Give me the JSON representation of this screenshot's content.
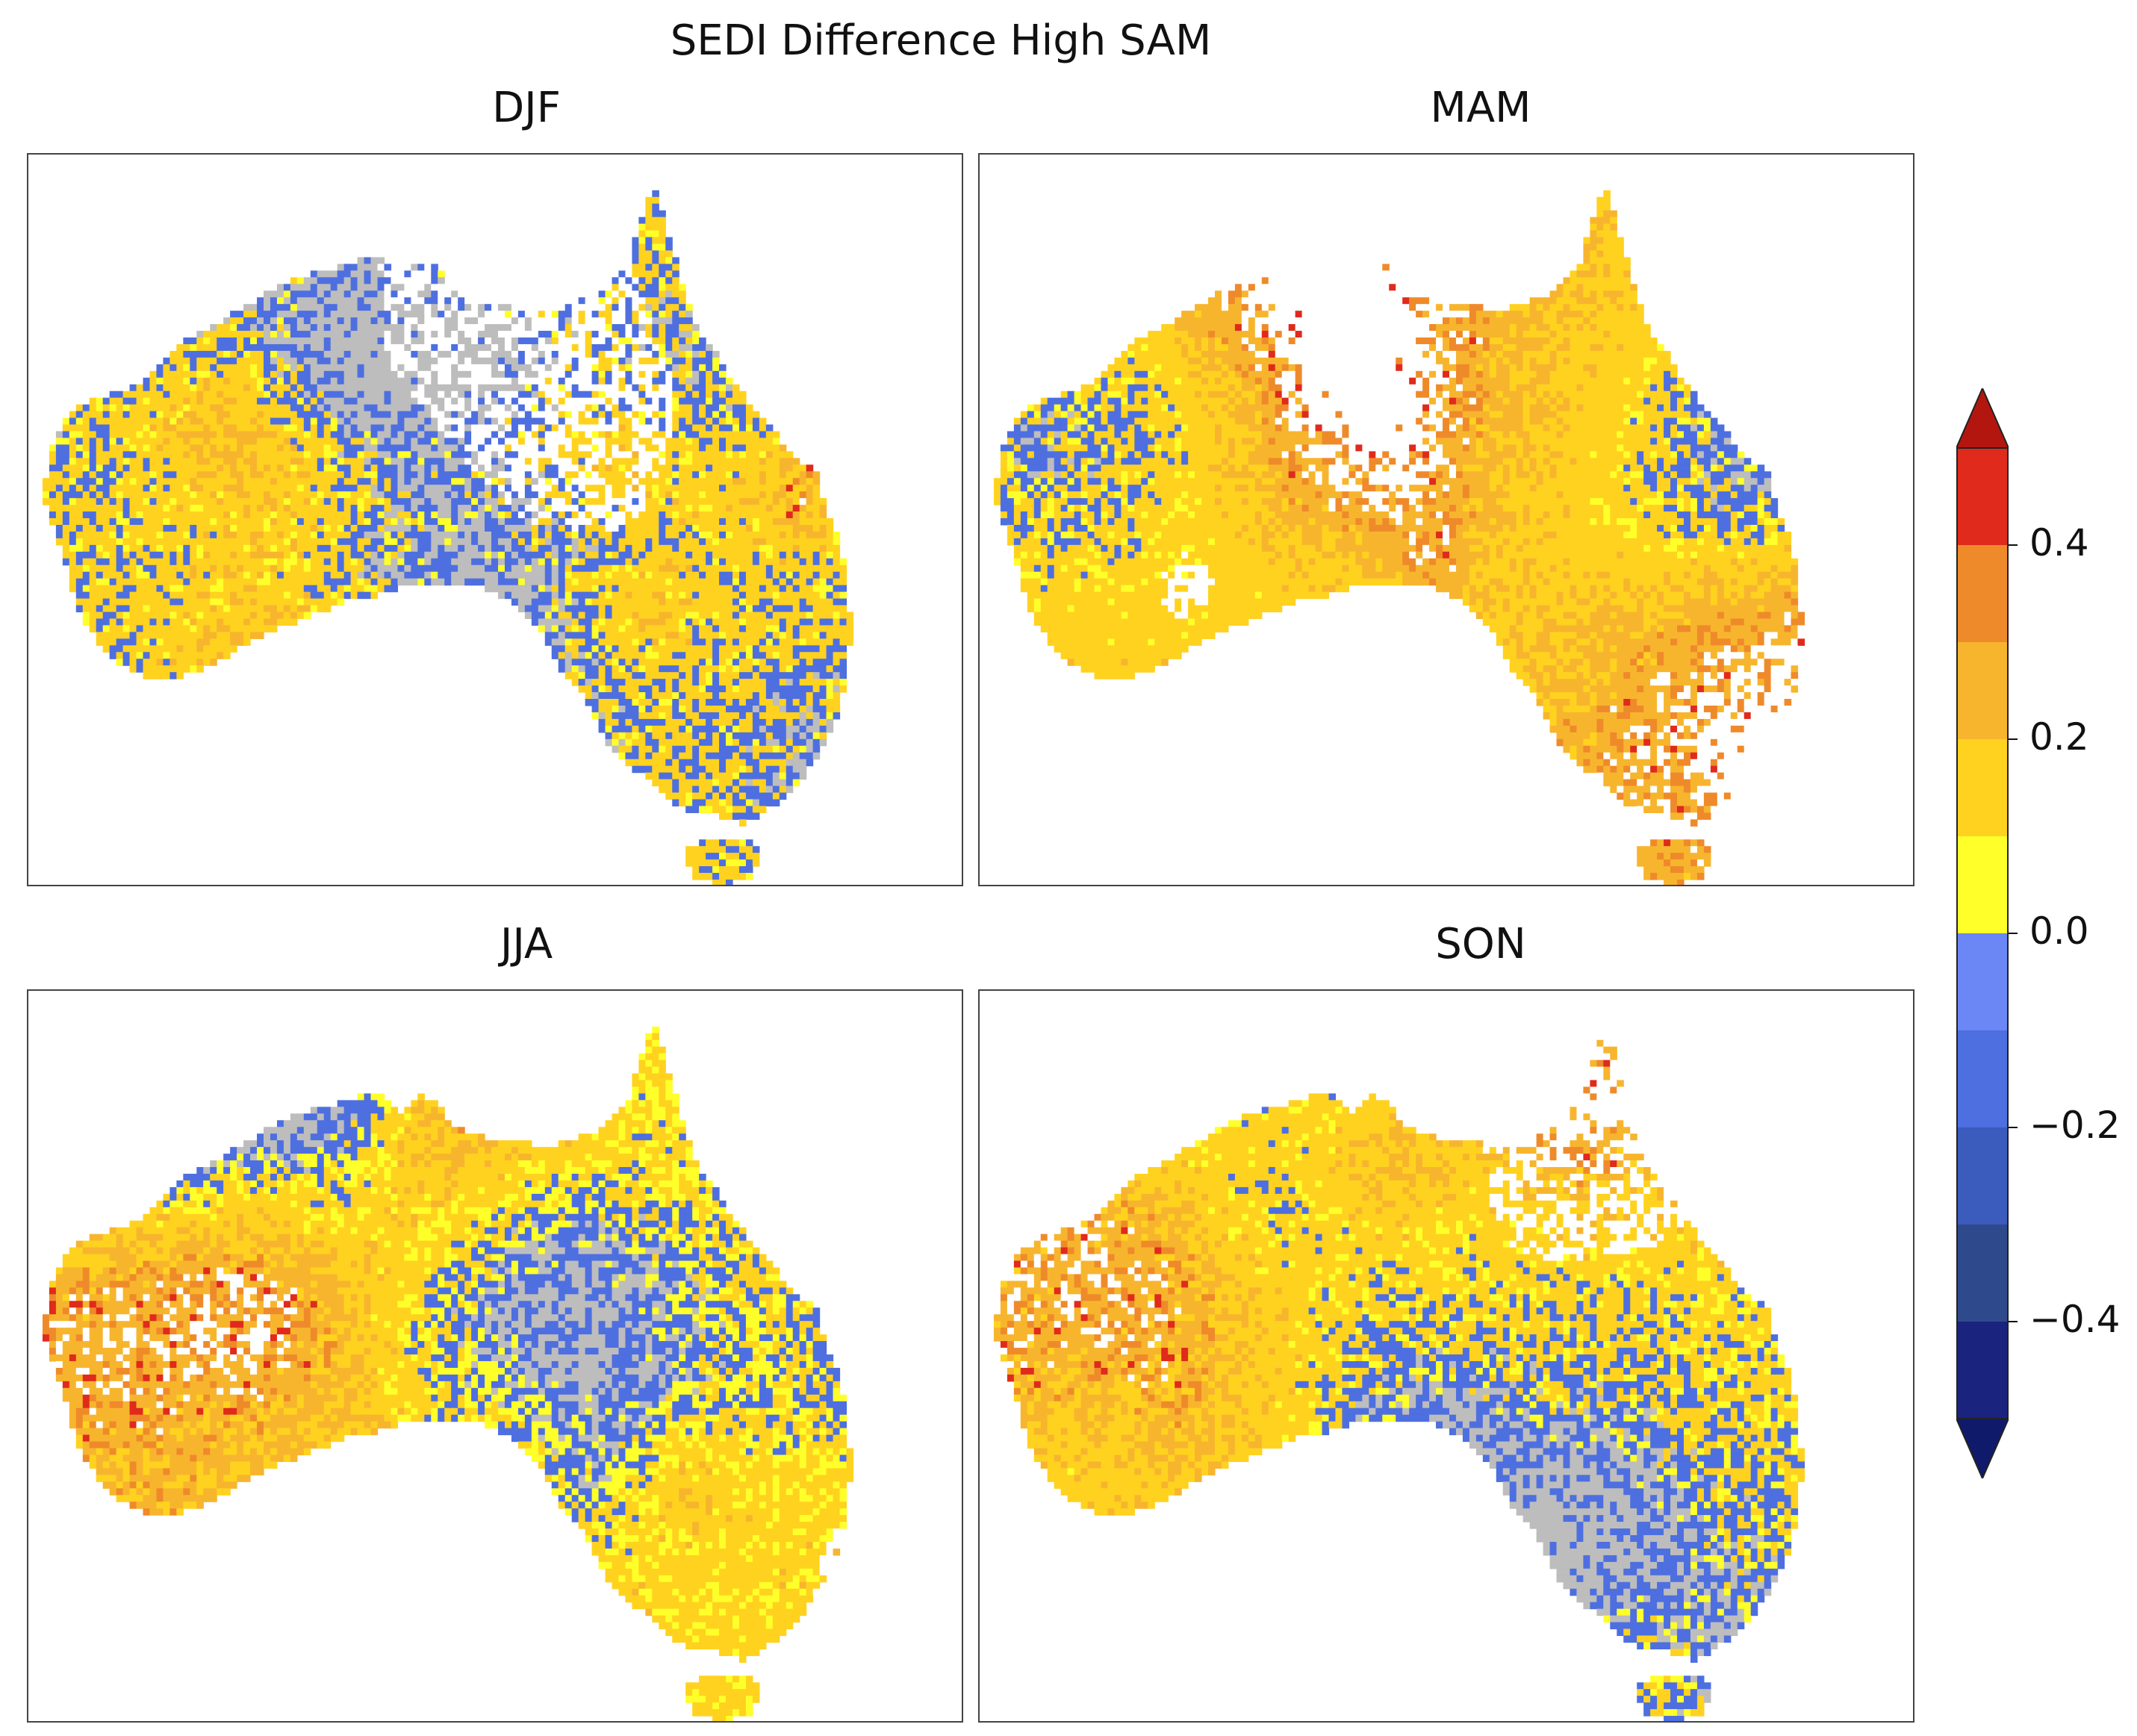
{
  "title": "SEDI Difference High SAM",
  "panels": [
    {
      "label": "DJF",
      "scheme": {
        "gray": 0.34,
        "blue": 0.16,
        "yellow": 0.04,
        "y_lo": 0.27,
        "y_mid": 0.16,
        "y_hi": 0.02,
        "orange": 0.03,
        "white": 0.06
      }
    },
    {
      "label": "MAM",
      "scheme": {
        "gray": 0.07,
        "blue": 0.16,
        "yellow": 0.05,
        "y_lo": 0.34,
        "y_mid": 0.25,
        "y_hi": 0.07,
        "orange": 0.01,
        "white": 0.05
      }
    },
    {
      "label": "JJA",
      "scheme": {
        "gray": 0.18,
        "blue": 0.16,
        "yellow": 0.1,
        "y_lo": 0.26,
        "y_mid": 0.2,
        "y_hi": 0.06,
        "orange": 0.02,
        "white": 0.02
      }
    },
    {
      "label": "SON",
      "scheme": {
        "gray": 0.22,
        "blue": 0.17,
        "yellow": 0.05,
        "y_lo": 0.29,
        "y_mid": 0.18,
        "y_hi": 0.05,
        "orange": 0.02,
        "white": 0.02
      }
    }
  ],
  "legend": {
    "ticks": [
      {
        "value": 0.4,
        "label": "0.4"
      },
      {
        "value": 0.2,
        "label": "0.2"
      },
      {
        "value": 0.0,
        "label": "0.0"
      },
      {
        "value": -0.2,
        "label": "−0.2"
      },
      {
        "value": -0.4,
        "label": "−0.4"
      }
    ],
    "range": [
      -0.5,
      0.5
    ],
    "bins": [
      {
        "from": -0.5,
        "to": -0.4,
        "color": "#1a237e"
      },
      {
        "from": -0.4,
        "to": -0.3,
        "color": "#2f4a8c"
      },
      {
        "from": -0.3,
        "to": -0.2,
        "color": "#3b5bbd"
      },
      {
        "from": -0.2,
        "to": -0.1,
        "color": "#4e6fe0"
      },
      {
        "from": -0.1,
        "to": 0.0,
        "color": "#6b86f5"
      },
      {
        "from": 0.0,
        "to": 0.1,
        "color": "#ffff2a"
      },
      {
        "from": 0.1,
        "to": 0.2,
        "color": "#ffd21f"
      },
      {
        "from": 0.2,
        "to": 0.3,
        "color": "#f7b52e"
      },
      {
        "from": 0.3,
        "to": 0.4,
        "color": "#ef8a2a"
      },
      {
        "from": 0.4,
        "to": 0.5,
        "color": "#e02a1c"
      }
    ],
    "extend_low_color": "#0f1a6b",
    "extend_high_color": "#b3160f"
  },
  "colors": {
    "missing": "#bdbdbd",
    "no_data": "#ffffff"
  }
}
